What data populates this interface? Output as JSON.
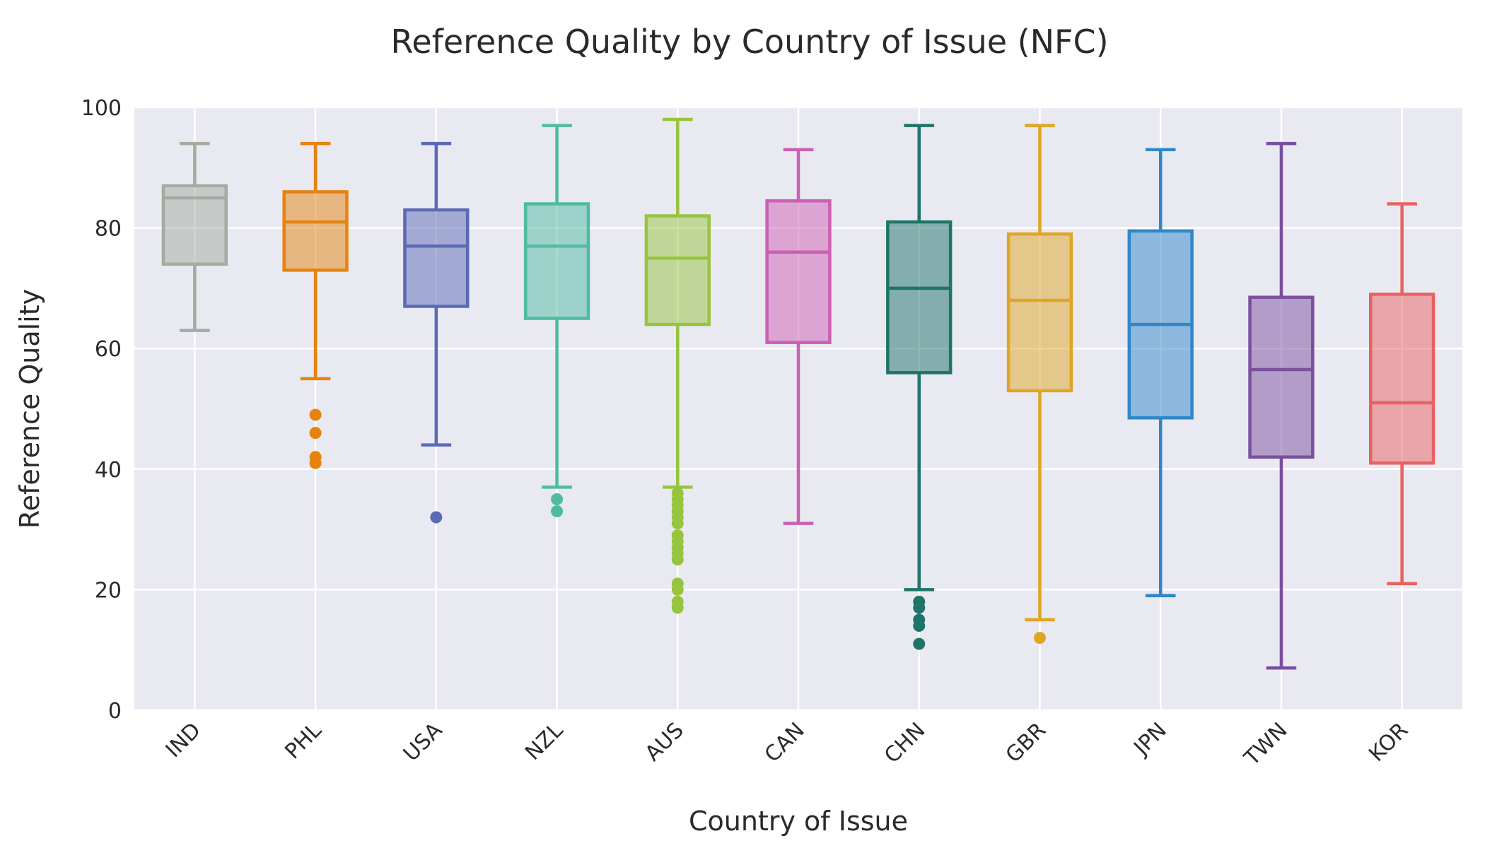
{
  "chart_data": {
    "type": "box",
    "title": "Reference Quality by Country of Issue (NFC)",
    "xlabel": "Country of Issue",
    "ylabel": "Reference Quality",
    "ylim": [
      0,
      100
    ],
    "yticks": [
      0,
      20,
      40,
      60,
      80,
      100
    ],
    "grid": true,
    "background": "#e9e9f2",
    "categories": [
      "IND",
      "PHL",
      "USA",
      "NZL",
      "AUS",
      "CAN",
      "CHN",
      "GBR",
      "JPN",
      "TWN",
      "KOR"
    ],
    "boxes": [
      {
        "name": "IND",
        "color": "#a6aaa0",
        "whisker_low": 63,
        "q1": 74,
        "median": 85,
        "q3": 87,
        "whisker_high": 94,
        "outliers": []
      },
      {
        "name": "PHL",
        "color": "#e6830f",
        "whisker_low": 55,
        "q1": 73,
        "median": 81,
        "q3": 86,
        "whisker_high": 94,
        "outliers": [
          41,
          42,
          46,
          49
        ]
      },
      {
        "name": "USA",
        "color": "#5b6ab4",
        "whisker_low": 44,
        "q1": 67,
        "median": 77,
        "q3": 83,
        "whisker_high": 94,
        "outliers": [
          32
        ]
      },
      {
        "name": "NZL",
        "color": "#4fbba0",
        "whisker_low": 37,
        "q1": 65,
        "median": 77,
        "q3": 84,
        "whisker_high": 97,
        "outliers": [
          33,
          35
        ]
      },
      {
        "name": "AUS",
        "color": "#97c43e",
        "whisker_low": 37,
        "q1": 64,
        "median": 75,
        "q3": 82,
        "whisker_high": 98,
        "outliers": [
          17,
          18,
          20,
          21,
          25,
          26,
          27,
          28,
          29,
          31,
          32,
          33,
          34,
          35,
          36
        ]
      },
      {
        "name": "CAN",
        "color": "#cd5fb1",
        "whisker_low": 31,
        "q1": 61,
        "median": 76,
        "q3": 84.5,
        "whisker_high": 93,
        "outliers": []
      },
      {
        "name": "CHN",
        "color": "#1e7468",
        "whisker_low": 20,
        "q1": 56,
        "median": 70,
        "q3": 81,
        "whisker_high": 97,
        "outliers": [
          11,
          14,
          15,
          17,
          18
        ]
      },
      {
        "name": "GBR",
        "color": "#e0a524",
        "whisker_low": 15,
        "q1": 53,
        "median": 68,
        "q3": 79,
        "whisker_high": 97,
        "outliers": [
          12
        ]
      },
      {
        "name": "JPN",
        "color": "#2f87c8",
        "whisker_low": 19,
        "q1": 48.5,
        "median": 64,
        "q3": 79.5,
        "whisker_high": 93,
        "outliers": []
      },
      {
        "name": "TWN",
        "color": "#7b4f9e",
        "whisker_low": 7,
        "q1": 42,
        "median": 56.5,
        "q3": 68.5,
        "whisker_high": 94,
        "outliers": []
      },
      {
        "name": "KOR",
        "color": "#e86262",
        "whisker_low": 21,
        "q1": 41,
        "median": 51,
        "q3": 69,
        "whisker_high": 84,
        "outliers": []
      }
    ]
  }
}
